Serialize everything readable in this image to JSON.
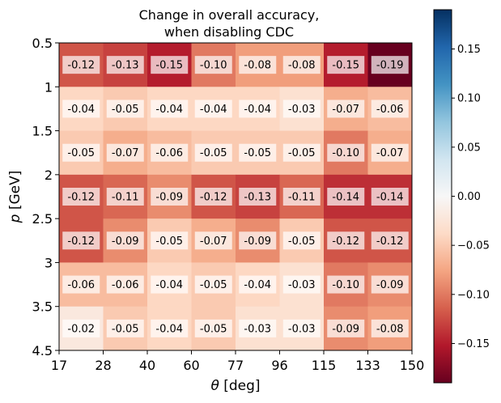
{
  "chart_data": {
    "type": "heatmap",
    "title_lines": [
      "Change in overall accuracy,",
      "when disabling CDC"
    ],
    "xlabel": {
      "symbol": "θ",
      "unit": " [deg]"
    },
    "ylabel": {
      "symbol": "p",
      "unit": " [GeV]"
    },
    "x_tick_labels": [
      "17",
      "28",
      "40",
      "60",
      "77",
      "96",
      "115",
      "133",
      "150"
    ],
    "y_tick_labels": [
      "0.5",
      "1",
      "1.5",
      "2",
      "2.5",
      "3",
      "3.5",
      "4.5"
    ],
    "values": [
      [
        -0.12,
        -0.13,
        -0.15,
        -0.1,
        -0.08,
        -0.08,
        -0.15,
        -0.19
      ],
      [
        -0.04,
        -0.05,
        -0.04,
        -0.04,
        -0.04,
        -0.03,
        -0.07,
        -0.06
      ],
      [
        -0.05,
        -0.07,
        -0.06,
        -0.05,
        -0.05,
        -0.05,
        -0.1,
        -0.07
      ],
      [
        -0.12,
        -0.11,
        -0.09,
        -0.12,
        -0.13,
        -0.11,
        -0.14,
        -0.14
      ],
      [
        -0.12,
        -0.09,
        -0.05,
        -0.07,
        -0.09,
        -0.05,
        -0.12,
        -0.12
      ],
      [
        -0.06,
        -0.06,
        -0.04,
        -0.05,
        -0.04,
        -0.03,
        -0.1,
        -0.09
      ],
      [
        -0.02,
        -0.05,
        -0.04,
        -0.05,
        -0.03,
        -0.03,
        -0.09,
        -0.08
      ]
    ],
    "cell_labels": [
      [
        "-0.12",
        "-0.13",
        "-0.15",
        "-0.10",
        "-0.08",
        "-0.08",
        "-0.15",
        "-0.19"
      ],
      [
        "-0.04",
        "-0.05",
        "-0.04",
        "-0.04",
        "-0.04",
        "-0.03",
        "-0.07",
        "-0.06"
      ],
      [
        "-0.05",
        "-0.07",
        "-0.06",
        "-0.05",
        "-0.05",
        "-0.05",
        "-0.10",
        "-0.07"
      ],
      [
        "-0.12",
        "-0.11",
        "-0.09",
        "-0.12",
        "-0.13",
        "-0.11",
        "-0.14",
        "-0.14"
      ],
      [
        "-0.12",
        "-0.09",
        "-0.05",
        "-0.07",
        "-0.09",
        "-0.05",
        "-0.12",
        "-0.12"
      ],
      [
        "-0.06",
        "-0.06",
        "-0.04",
        "-0.05",
        "-0.04",
        "-0.03",
        "-0.10",
        "-0.09"
      ],
      [
        "-0.02",
        "-0.05",
        "-0.04",
        "-0.05",
        "-0.03",
        "-0.03",
        "-0.09",
        "-0.08"
      ]
    ],
    "colorbar": {
      "colormap": "RdBu",
      "vmin": -0.19,
      "vmax": 0.19,
      "ticks": [
        0.15,
        0.1,
        0.05,
        0.0,
        -0.05,
        -0.1,
        -0.15
      ],
      "tick_labels": [
        "0.15",
        "0.10",
        "0.05",
        "0.00",
        "−0.05",
        "−0.10",
        "−0.15"
      ]
    },
    "grid": false,
    "legend": "none"
  }
}
